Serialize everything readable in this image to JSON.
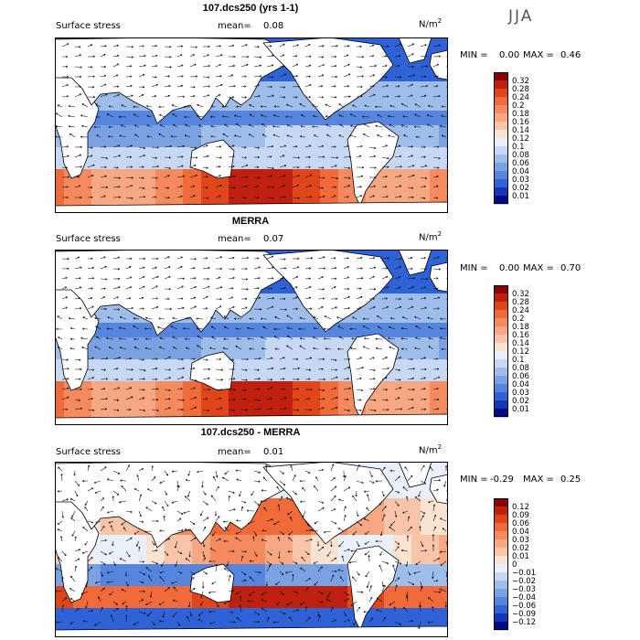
{
  "season": "JJA",
  "chart_data": [
    {
      "type": "heatmap",
      "title": "107.dcs250 (yrs 1-1)",
      "left_label": "Surface stress",
      "mean_label": "mean=",
      "mean_value": "0.08",
      "units": "N/m",
      "units_exp": "2",
      "min_label": "MIN =",
      "min_value": "0.00",
      "max_label": "MAX =",
      "max_value": "0.46",
      "colorbar": {
        "levels": [
          "0.32",
          "0.28",
          "0.24",
          "0.2",
          "0.18",
          "0.16",
          "0.14",
          "0.12",
          "0.1",
          "0.08",
          "0.06",
          "0.04",
          "0.03",
          "0.02",
          "0.01"
        ],
        "colors": [
          "#8b0000",
          "#c0200f",
          "#e0461a",
          "#f06a3a",
          "#f48a5e",
          "#f7a883",
          "#f9c4a8",
          "#fbe3d2",
          "#eaf0fb",
          "#c6d8f4",
          "#9ebdeb",
          "#7aa2e3",
          "#5585df",
          "#2f62d6",
          "#1536b8",
          "#000c84"
        ]
      }
    },
    {
      "type": "heatmap",
      "title": "MERRA",
      "left_label": "Surface stress",
      "mean_label": "mean=",
      "mean_value": "0.07",
      "units": "N/m",
      "units_exp": "2",
      "min_label": "MIN =",
      "min_value": "0.00",
      "max_label": "MAX =",
      "max_value": "0.70",
      "colorbar": {
        "levels": [
          "0.32",
          "0.28",
          "0.24",
          "0.2",
          "0.18",
          "0.16",
          "0.14",
          "0.12",
          "0.1",
          "0.08",
          "0.06",
          "0.04",
          "0.03",
          "0.02",
          "0.01"
        ],
        "colors": [
          "#8b0000",
          "#c0200f",
          "#e0461a",
          "#f06a3a",
          "#f48a5e",
          "#f7a883",
          "#f9c4a8",
          "#fbe3d2",
          "#eaf0fb",
          "#c6d8f4",
          "#9ebdeb",
          "#7aa2e3",
          "#5585df",
          "#2f62d6",
          "#1536b8",
          "#000c84"
        ]
      }
    },
    {
      "type": "heatmap",
      "title": "107.dcs250 - MERRA",
      "left_label": "Surface stress",
      "mean_label": "mean=",
      "mean_value": "0.01",
      "units": "N/m",
      "units_exp": "2",
      "min_label": "MIN =",
      "min_value": "-0.29",
      "max_label": "MAX =",
      "max_value": "0.25",
      "colorbar": {
        "levels": [
          "0.12",
          "0.09",
          "0.06",
          "0.04",
          "0.03",
          "0.02",
          "0.01",
          "0",
          "−0.01",
          "−0.02",
          "−0.03",
          "−0.04",
          "−0.06",
          "−0.09",
          "−0.12"
        ],
        "colors": [
          "#8b0000",
          "#c0200f",
          "#e0461a",
          "#f06a3a",
          "#f48a5e",
          "#f7a883",
          "#f9c4a8",
          "#fbe3d2",
          "#eaf0fb",
          "#c6d8f4",
          "#9ebdeb",
          "#7aa2e3",
          "#5585df",
          "#2f62d6",
          "#1536b8",
          "#000c84"
        ]
      }
    }
  ]
}
